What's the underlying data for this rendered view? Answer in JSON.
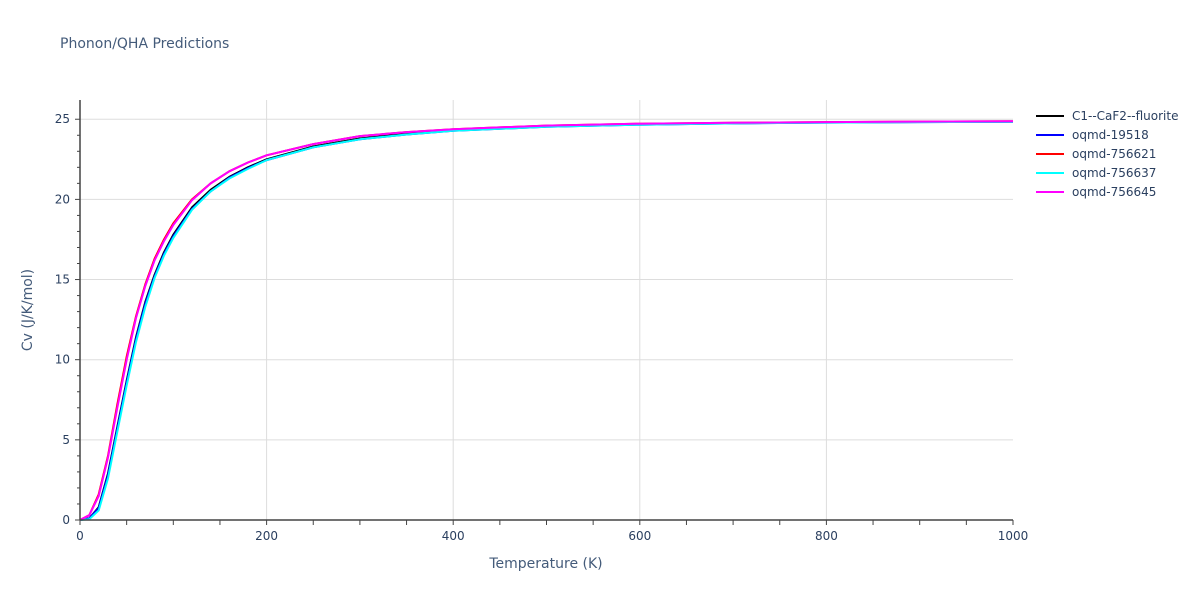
{
  "title": "Phonon/QHA Predictions",
  "chart_data": {
    "type": "line",
    "title": "Phonon/QHA Predictions",
    "xlabel": "Temperature (K)",
    "ylabel": "Cv (J/K/mol)",
    "xlim": [
      0,
      1000
    ],
    "ylim": [
      0,
      26.2
    ],
    "x_ticks": [
      0,
      200,
      400,
      600,
      800,
      1000
    ],
    "y_ticks": [
      0,
      5,
      10,
      15,
      20,
      25
    ],
    "grid": true,
    "legend_position": "right",
    "x": [
      0,
      10,
      20,
      30,
      40,
      50,
      60,
      70,
      80,
      90,
      100,
      120,
      140,
      160,
      180,
      200,
      250,
      300,
      350,
      400,
      500,
      600,
      700,
      800,
      900,
      1000
    ],
    "series": [
      {
        "name": "C1--CaF2--fluorite",
        "color": "#000000",
        "values": [
          0,
          0.1,
          0.8,
          2.9,
          5.8,
          8.7,
          11.4,
          13.6,
          15.3,
          16.7,
          17.8,
          19.5,
          20.6,
          21.4,
          22.0,
          22.5,
          23.3,
          23.8,
          24.1,
          24.3,
          24.55,
          24.68,
          24.75,
          24.8,
          24.83,
          24.85
        ]
      },
      {
        "name": "oqmd-19518",
        "color": "#0000ff",
        "values": [
          0,
          0.1,
          0.75,
          2.8,
          5.7,
          8.6,
          11.3,
          13.5,
          15.2,
          16.6,
          17.7,
          19.4,
          20.5,
          21.35,
          21.95,
          22.45,
          23.25,
          23.75,
          24.05,
          24.28,
          24.53,
          24.66,
          24.74,
          24.79,
          24.82,
          24.84
        ]
      },
      {
        "name": "oqmd-756621",
        "color": "#ff0000",
        "values": [
          0,
          0.3,
          1.6,
          4.0,
          7.2,
          10.2,
          12.7,
          14.7,
          16.3,
          17.5,
          18.5,
          20.0,
          21.0,
          21.75,
          22.3,
          22.75,
          23.45,
          23.95,
          24.2,
          24.38,
          24.6,
          24.72,
          24.78,
          24.82,
          24.85,
          24.87
        ]
      },
      {
        "name": "oqmd-756637",
        "color": "#00ffff",
        "values": [
          0,
          0.05,
          0.6,
          2.6,
          5.5,
          8.4,
          11.1,
          13.3,
          15.1,
          16.5,
          17.6,
          19.35,
          20.5,
          21.3,
          21.9,
          22.45,
          23.25,
          23.75,
          24.05,
          24.28,
          24.53,
          24.66,
          24.74,
          24.79,
          24.82,
          24.84
        ]
      },
      {
        "name": "oqmd-756645",
        "color": "#ff00ff",
        "values": [
          0,
          0.3,
          1.5,
          3.9,
          7.0,
          10.0,
          12.6,
          14.6,
          16.2,
          17.4,
          18.4,
          19.95,
          21.0,
          21.75,
          22.3,
          22.75,
          23.45,
          23.95,
          24.2,
          24.38,
          24.6,
          24.72,
          24.78,
          24.82,
          24.85,
          24.87
        ]
      }
    ]
  },
  "axes": {
    "x_label": "Temperature (K)",
    "y_label": "Cv (J/K/mol)"
  },
  "legend": [
    {
      "label": "C1--CaF2--fluorite",
      "color": "#000000"
    },
    {
      "label": "oqmd-19518",
      "color": "#0000ff"
    },
    {
      "label": "oqmd-756621",
      "color": "#ff0000"
    },
    {
      "label": "oqmd-756637",
      "color": "#00ffff"
    },
    {
      "label": "oqmd-756645",
      "color": "#ff00ff"
    }
  ]
}
